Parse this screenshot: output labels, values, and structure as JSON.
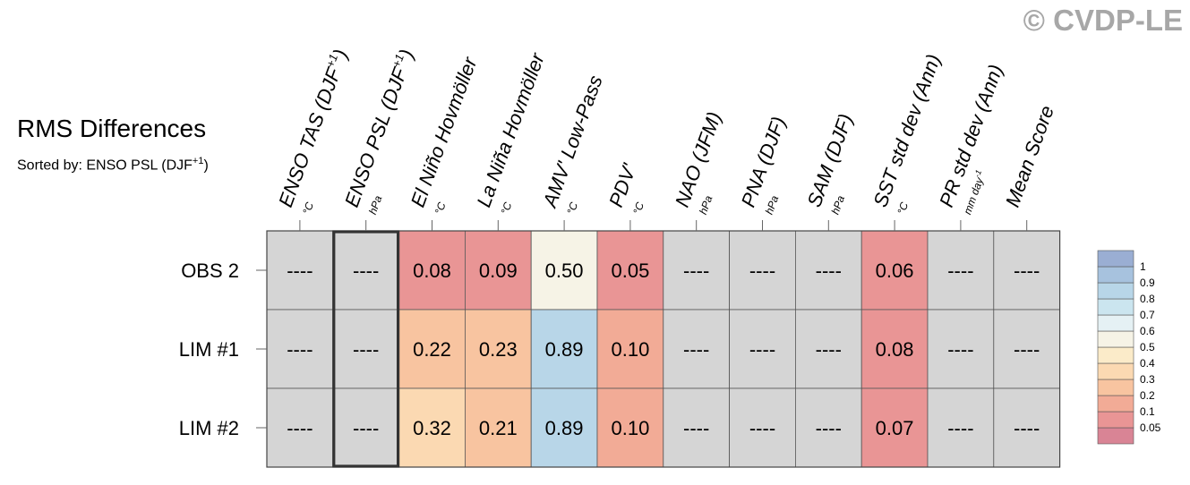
{
  "copyright": "© CVDP-LE",
  "title": "RMS Differences",
  "subtitle": {
    "prefix": "Sorted by: ENSO PSL (DJF",
    "superscript": "+1",
    "suffix": ")"
  },
  "chart_data": {
    "type": "heatmap",
    "title": "RMS Differences",
    "sorted_by": "ENSO PSL (DJF+1)",
    "columns": [
      {
        "label": "ENSO TAS (DJF",
        "sup": "+1",
        "after": ")",
        "unit": "°C"
      },
      {
        "label": "ENSO PSL (DJF",
        "sup": "+1",
        "after": ")",
        "unit": "hPa"
      },
      {
        "label": "El Niño Hovmöller",
        "sup": "",
        "after": "",
        "unit": "°C"
      },
      {
        "label": "La Niña Hovmöller",
        "sup": "",
        "after": "",
        "unit": "°C"
      },
      {
        "label": "AMV' Low-Pass",
        "sup": "",
        "after": "",
        "unit": "°C"
      },
      {
        "label": "PDV'",
        "sup": "",
        "after": "",
        "unit": "°C"
      },
      {
        "label": "NAO (JFM)",
        "sup": "",
        "after": "",
        "unit": "hPa"
      },
      {
        "label": "PNA (DJF)",
        "sup": "",
        "after": "",
        "unit": "hPa"
      },
      {
        "label": "SAM (DJF)",
        "sup": "",
        "after": "",
        "unit": "hPa"
      },
      {
        "label": "SST std dev (Ann)",
        "sup": "",
        "after": "",
        "unit": "°C"
      },
      {
        "label": "PR std dev (Ann)",
        "sup": "",
        "after": "",
        "unit": "mm day-1"
      },
      {
        "label": "Mean Score",
        "sup": "",
        "after": "",
        "unit": ""
      }
    ],
    "rows": [
      "OBS 2",
      "LIM #1",
      "LIM #2"
    ],
    "values": [
      [
        null,
        null,
        0.08,
        0.09,
        0.5,
        0.05,
        null,
        null,
        null,
        0.06,
        null,
        null
      ],
      [
        null,
        null,
        0.22,
        0.23,
        0.89,
        0.1,
        null,
        null,
        null,
        0.08,
        null,
        null
      ],
      [
        null,
        null,
        0.32,
        0.21,
        0.89,
        0.1,
        null,
        null,
        null,
        0.07,
        null,
        null
      ]
    ],
    "missing_label": "----",
    "highlighted_column": 1,
    "colorbar": {
      "levels": [
        0.05,
        0.1,
        0.2,
        0.3,
        0.4,
        0.5,
        0.6,
        0.7,
        0.8,
        0.9,
        1
      ],
      "labels": [
        "1",
        "0.9",
        "0.8",
        "0.7",
        "0.6",
        "0.5",
        "0.4",
        "0.3",
        "0.2",
        "0.1",
        "0.05"
      ]
    }
  },
  "colors": {
    "missing": "#d5d5d5",
    "grid": "#555555",
    "copyright": "#a7a7a7",
    "scale": [
      "#d98495",
      "#e99595",
      "#f2ab96",
      "#f8c4a0",
      "#fbd9b2",
      "#fbebc9",
      "#f6f3e6",
      "#e5f1f4",
      "#cbe5ef",
      "#b8d6e8",
      "#a7c2de",
      "#9aaed3"
    ]
  }
}
